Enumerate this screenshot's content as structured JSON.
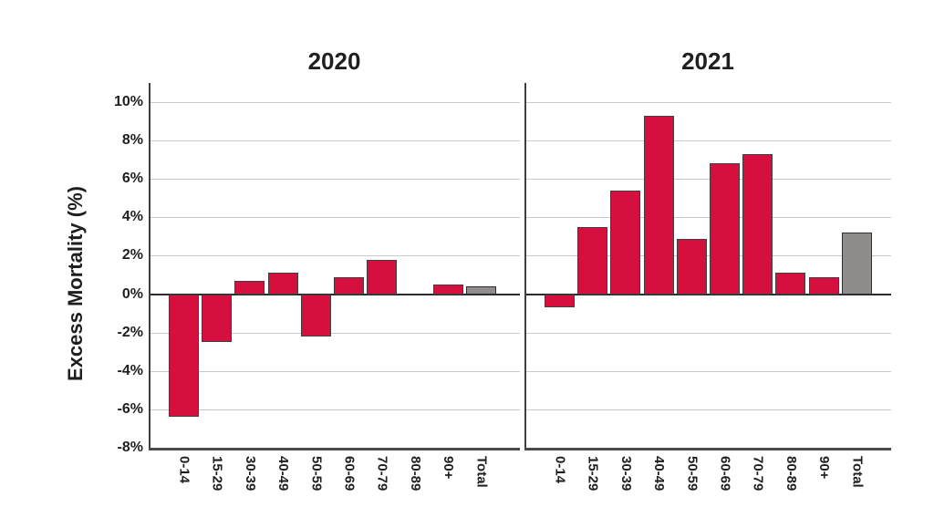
{
  "chart_data": {
    "type": "bar",
    "ylabel": "Excess Mortality (%)",
    "categories": [
      "0-14",
      "15-29",
      "30-39",
      "40-49",
      "50-59",
      "60-69",
      "70-79",
      "80-89",
      "90+",
      "Total"
    ],
    "ytick_labels": [
      "10%",
      "8%",
      "6%",
      "4%",
      "2%",
      "0%",
      "-2%",
      "-4%",
      "-6%",
      "-8%"
    ],
    "ytick_values": [
      10,
      8,
      6,
      4,
      2,
      0,
      -2,
      -4,
      -6,
      -8
    ],
    "ylim": [
      -8,
      11
    ],
    "grid": true,
    "legend": "none",
    "bar_color": "#D50F3E",
    "total_bar_color": "#908C8C",
    "panels": [
      {
        "title": "2020",
        "series": [
          {
            "category": "0-14",
            "value": -6.4
          },
          {
            "category": "15-29",
            "value": -2.5
          },
          {
            "category": "30-39",
            "value": 0.7
          },
          {
            "category": "40-49",
            "value": 1.1
          },
          {
            "category": "50-59",
            "value": -2.2
          },
          {
            "category": "60-69",
            "value": 0.9
          },
          {
            "category": "70-79",
            "value": 1.8
          },
          {
            "category": "80-89",
            "value": 0.0
          },
          {
            "category": "90+",
            "value": 0.5
          },
          {
            "category": "Total",
            "value": 0.4
          }
        ]
      },
      {
        "title": "2021",
        "series": [
          {
            "category": "0-14",
            "value": -0.7
          },
          {
            "category": "15-29",
            "value": 3.5
          },
          {
            "category": "30-39",
            "value": 5.4
          },
          {
            "category": "40-49",
            "value": 9.3
          },
          {
            "category": "50-59",
            "value": 2.9
          },
          {
            "category": "60-69",
            "value": 6.8
          },
          {
            "category": "70-79",
            "value": 7.3
          },
          {
            "category": "80-89",
            "value": 1.1
          },
          {
            "category": "90+",
            "value": 0.9
          },
          {
            "category": "Total",
            "value": 3.2
          }
        ]
      }
    ]
  }
}
